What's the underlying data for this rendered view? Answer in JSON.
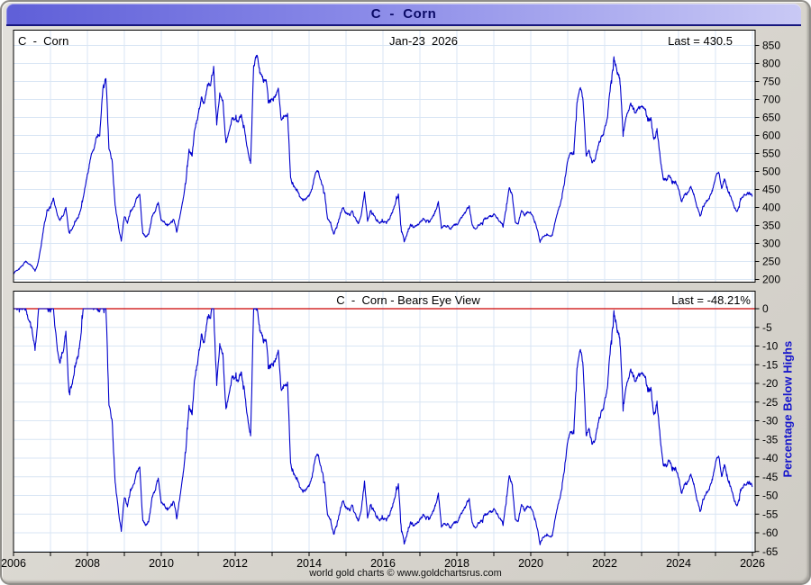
{
  "window": {
    "title": "C  -  Corn"
  },
  "panel_price": {
    "symbol_label": "C  -  Corn",
    "date_label": "Jan-23  2026",
    "last_label": "Last = 430.5",
    "yticks": [
      850,
      800,
      750,
      700,
      650,
      600,
      550,
      500,
      450,
      400,
      350,
      300,
      250,
      200
    ]
  },
  "panel_bears": {
    "title": "C  -  Corn - Bears Eye View",
    "last_label": "Last = -48.21%",
    "axis_label": "Percentage Below Highs",
    "yticks": [
      0,
      -5,
      -10,
      -15,
      -20,
      -25,
      -30,
      -35,
      -40,
      -45,
      -50,
      -55,
      -60,
      -65
    ]
  },
  "footer": {
    "credit": "world gold charts © www.goldchartsrus.com"
  },
  "colors": {
    "line": "#0000cc",
    "grid": "#d9e6f4",
    "zero_line": "#cc0000",
    "plot_bg": "#ffffff",
    "plot_border": "#000000",
    "titlebar_left": "#5f5fd8",
    "titlebar_right": "#c9c9f5",
    "title_text": "#0a0a66",
    "axis_label_blue": "#1515cc",
    "frame_bg": "#d8d5ce"
  },
  "chart_data": {
    "type": "line",
    "title": "C - Corn",
    "x_unit": "year",
    "x_start": 2006.0,
    "x_resolution": "monthly",
    "xlim": [
      2006.0,
      2026.07
    ],
    "x_tick_years": [
      2006,
      2008,
      2010,
      2012,
      2014,
      2016,
      2018,
      2020,
      2022,
      2024,
      2026
    ],
    "minor_x_tick_every_years": 1,
    "grid": true,
    "legend": "none",
    "panels": [
      {
        "name": "price",
        "label_left": "C - Corn",
        "date_of_last": "Jan-23 2026",
        "last_value": 430.5,
        "ylim": [
          192.5,
          892.5
        ],
        "ytick_step": 50,
        "all_time_high_in_window": 831.25,
        "values_monthly": [
          215,
          225,
          232,
          240,
          252,
          245,
          235,
          226,
          246,
          295,
          355,
          390,
          402,
          428,
          385,
          362,
          378,
          398,
          330,
          338,
          360,
          372,
          396,
          445,
          490,
          535,
          562,
          600,
          605,
          728,
          765,
          560,
          530,
          408,
          352,
          305,
          378,
          355,
          388,
          398,
          425,
          435,
          325,
          318,
          328,
          372,
          390,
          412,
          365,
          358,
          348,
          355,
          368,
          332,
          372,
          420,
          468,
          560,
          545,
          625,
          658,
          705,
          688,
          742,
          748,
          788,
          630,
          715,
          692,
          582,
          605,
          645,
          642,
          640,
          658,
          622,
          558,
          525,
          790,
          831.25,
          782,
          755,
          752,
          700,
          698,
          705,
          730,
          642,
          655,
          660,
          480,
          462,
          450,
          428,
          418,
          425,
          432,
          455,
          492,
          505,
          470,
          442,
          365,
          358,
          323,
          345,
          378,
          400,
          385,
          378,
          388,
          368,
          355,
          382,
          440,
          365,
          388,
          380,
          362,
          358,
          360,
          362,
          368,
          388,
          408,
          438,
          335,
          308,
          330,
          352,
          345,
          350,
          358,
          368,
          362,
          360,
          370,
          388,
          415,
          342,
          350,
          348,
          342,
          350,
          352,
          365,
          378,
          390,
          404,
          352,
          340,
          350,
          356,
          368,
          372,
          376,
          378,
          374,
          360,
          352,
          395,
          455,
          432,
          358,
          355,
          390,
          378,
          388,
          386,
          368,
          342,
          305,
          320,
          326,
          318,
          324,
          362,
          398,
          420,
          475,
          532,
          548,
          556,
          688,
          735,
          700,
          545,
          555,
          522,
          538,
          575,
          595,
          615,
          658,
          748,
          815,
          782,
          755,
          600,
          650,
          678,
          685,
          665,
          678,
          675,
          680,
          642,
          648,
          585,
          618,
          540,
          478,
          477,
          488,
          467,
          471,
          448,
          418,
          435,
          442,
          460,
          435,
          405,
          375,
          405,
          415,
          428,
          448,
          482,
          502,
          455,
          480,
          448,
          428,
          400,
          388,
          420,
          430,
          438,
          441,
          430.5
        ]
      },
      {
        "name": "bears_eye_view",
        "title": "C - Corn - Bears Eye View",
        "ylabel": "Percentage Below Highs",
        "last_value": -48.21,
        "ylim": [
          -65.2,
          4.7
        ],
        "ytick_step": 5,
        "zero_line": 0,
        "derivation": "100 * (price / running_maximum_of_price - 1)"
      }
    ]
  }
}
